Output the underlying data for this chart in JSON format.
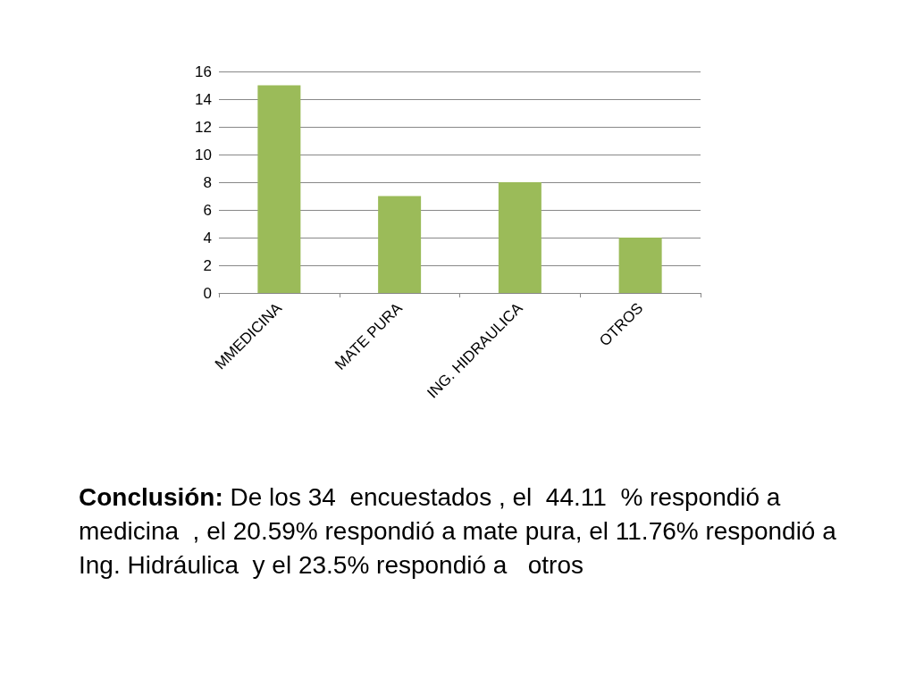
{
  "chart_data": {
    "type": "bar",
    "categories": [
      "MMEDICINA",
      "MATE PURA",
      "ING. HIDRAULICA",
      "OTROS"
    ],
    "values": [
      15,
      7,
      8,
      4
    ],
    "color": "#9bbb59",
    "ylim": [
      0,
      16
    ],
    "yticks": [
      0,
      2,
      4,
      6,
      8,
      10,
      12,
      14,
      16
    ],
    "grid": "y",
    "annotations": [
      "Conclusión:",
      "De los 34  encuestados , el  44.11  % respondió a medicina  , el 20.59% respondió a mate pura, el 11.76% respondió a Ing. Hidráulica  y el 23.5% respondió a   otros"
    ]
  }
}
